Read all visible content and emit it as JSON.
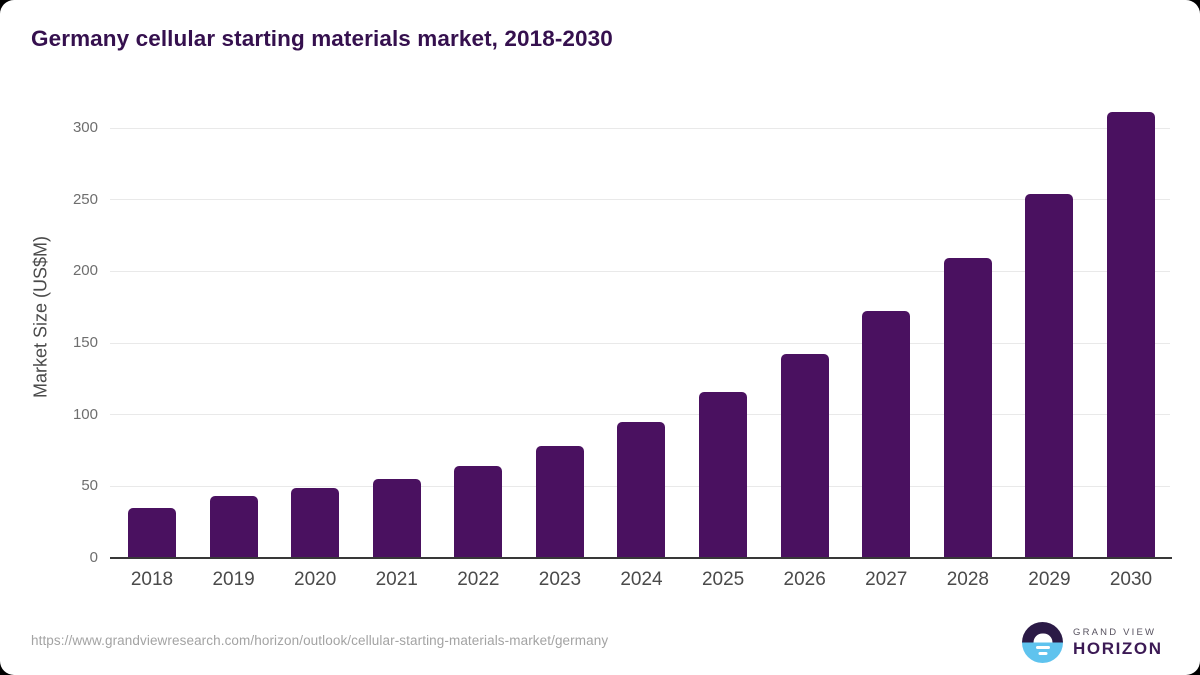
{
  "title": "Germany cellular starting materials market, 2018-2030",
  "source_url": "https://www.grandviewresearch.com/horizon/outlook/cellular-starting-materials-market/germany",
  "logo": {
    "brand": "GRAND VIEW",
    "product": "HORIZON",
    "icon": "horizon-sunset-icon"
  },
  "colors": {
    "bar": "#4a1160",
    "title": "#35104e",
    "axis_line": "#383838",
    "gridline": "#e9e9e9",
    "logo_dark": "#2b1a46",
    "logo_blue": "#5fc3ee"
  },
  "chart_data": {
    "type": "bar",
    "title": "Germany cellular starting materials market, 2018-2030",
    "categories": [
      "2018",
      "2019",
      "2020",
      "2021",
      "2022",
      "2023",
      "2024",
      "2025",
      "2026",
      "2027",
      "2028",
      "2029",
      "2030"
    ],
    "values": [
      35,
      43,
      49,
      55,
      64,
      78,
      95,
      116,
      142,
      172,
      209,
      254,
      311
    ],
    "xlabel": "",
    "ylabel": "Market Size (US$M)",
    "ylim": [
      0,
      325
    ],
    "yticks": [
      0,
      50,
      100,
      150,
      200,
      250,
      300
    ],
    "grid": true,
    "legend": false,
    "bar_color": "#4a1160"
  }
}
